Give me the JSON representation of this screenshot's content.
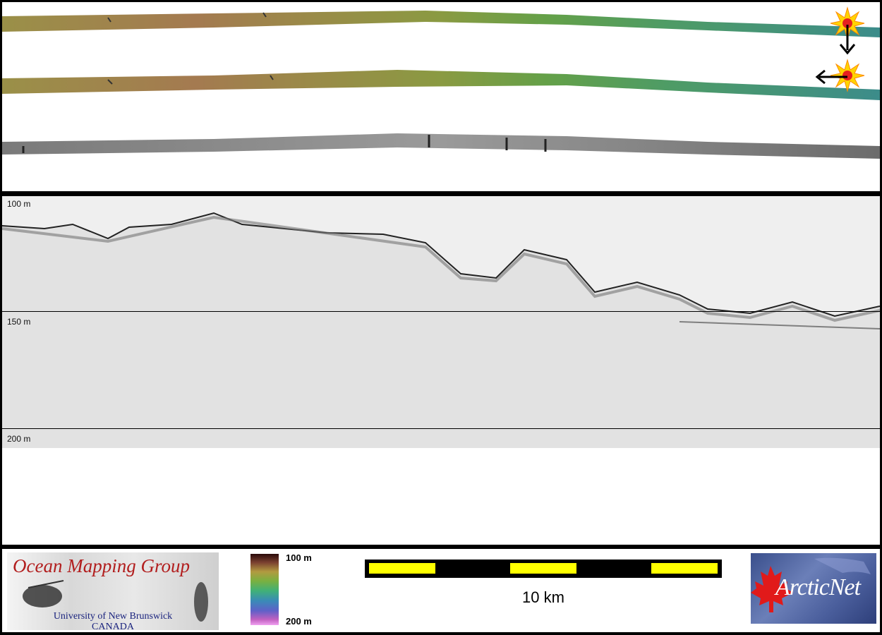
{
  "profile": {
    "depth_labels": [
      "100 m",
      "150 m",
      "200 m"
    ]
  },
  "legend": {
    "colorbar_top": "100 m",
    "colorbar_bottom": "200 m",
    "scale_label": "10 km"
  },
  "logos": {
    "omg_title": "Ocean Mapping Group",
    "omg_line1": "University of New Brunswick",
    "omg_line2": "CANADA",
    "arcticnet": "ArcticNet"
  }
}
